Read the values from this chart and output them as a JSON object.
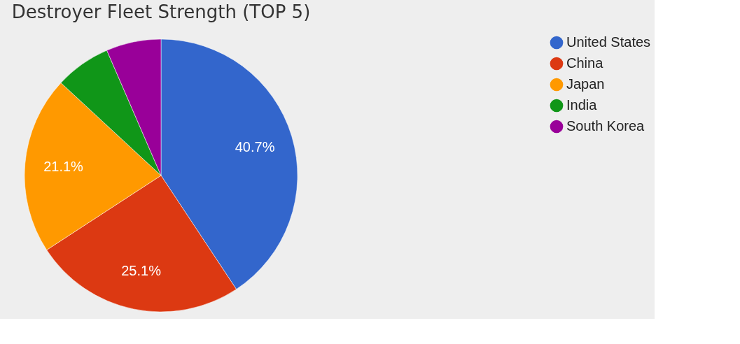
{
  "chart_data": {
    "type": "pie",
    "title": "Destroyer Fleet Strength (TOP 5)",
    "categories": [
      "United States",
      "China",
      "Japan",
      "India",
      "South Korea"
    ],
    "values": [
      40.7,
      25.1,
      21.1,
      6.6,
      6.5
    ],
    "colors": [
      "#3366cc",
      "#dc3912",
      "#ff9900",
      "#109618",
      "#990099"
    ],
    "value_labels": [
      "40.7%",
      "25.1%",
      "21.1%",
      null,
      null
    ],
    "legend": "right"
  }
}
